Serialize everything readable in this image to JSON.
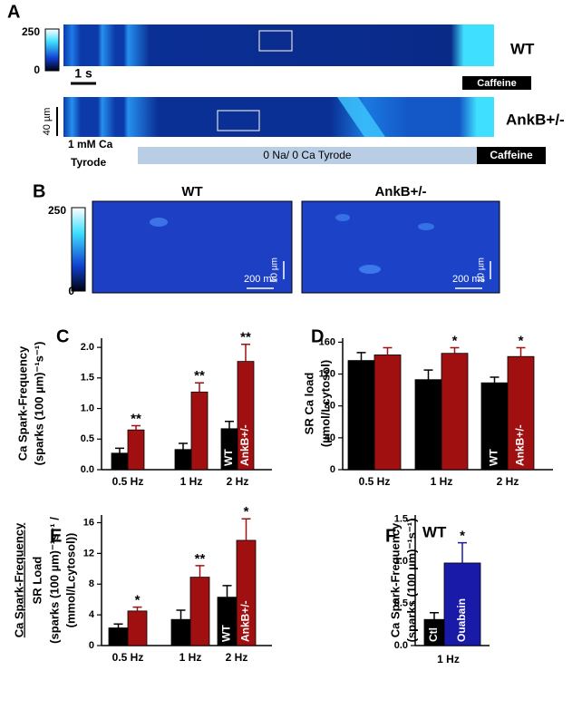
{
  "panel_a": {
    "label": "A",
    "colorbar_max": "250",
    "colorbar_min": "0",
    "wt_label": "WT",
    "time_scale": "1 s",
    "caffeine_1": "Caffeine",
    "ankb_label": "AnkB+/-",
    "space_scale": "40 µm",
    "tyrode_1": "1 mM Ca",
    "tyrode_2": "Tyrode",
    "solution": "0 Na/ 0 Ca Tyrode",
    "caffeine_2": "Caffeine"
  },
  "panel_b": {
    "label": "B",
    "colorbar_max": "250",
    "colorbar_min": "0",
    "wt_title": "WT",
    "ankb_title": "AnkB+/-",
    "space_scale_wt": "10 µm",
    "time_scale_wt": "200 ms",
    "space_scale_ankb": "10 µm",
    "time_scale_ankb": "200 ms"
  },
  "chart_data": [
    {
      "type": "bar",
      "panel_label": "C",
      "ylabel": [
        "Ca Spark-Frequency",
        "(sparks (100 µm)⁻¹s⁻¹)"
      ],
      "categories": [
        "0.5 Hz",
        "1 Hz",
        "2 Hz"
      ],
      "series": [
        {
          "name": "WT",
          "color": "#000000",
          "values": [
            0.27,
            0.33,
            0.67
          ],
          "errors": [
            0.08,
            0.1,
            0.12
          ],
          "annotations": [
            null,
            null,
            null
          ]
        },
        {
          "name": "AnkB+/-",
          "color": "#a01010",
          "values": [
            0.65,
            1.27,
            1.77
          ],
          "errors": [
            0.07,
            0.15,
            0.28
          ],
          "annotations": [
            "**",
            "**",
            "**"
          ]
        }
      ],
      "ylim": [
        0,
        2.15
      ],
      "yticks": [
        {
          "value": 0,
          "label": "0.0"
        },
        0.5,
        {
          "value": 1,
          "label": "1.0"
        },
        1.5,
        {
          "value": 2,
          "label": "2.0"
        }
      ]
    },
    {
      "type": "bar",
      "panel_label": "D",
      "ylabel": [
        "SR Ca load",
        "(µmol/Lcytosol)"
      ],
      "categories": [
        "0.5 Hz",
        "1 Hz",
        "2 Hz"
      ],
      "series": [
        {
          "name": "WT",
          "color": "#000000",
          "values": [
            137,
            113,
            109
          ],
          "errors": [
            10,
            12,
            7
          ],
          "annotations": [
            null,
            null,
            null
          ]
        },
        {
          "name": "AnkB+/-",
          "color": "#a01010",
          "values": [
            144,
            146,
            142
          ],
          "errors": [
            9,
            7,
            11
          ],
          "annotations": [
            null,
            "*",
            "*"
          ]
        }
      ],
      "ylim": [
        0,
        165
      ],
      "yticks": [
        0,
        40,
        80,
        120,
        160
      ]
    },
    {
      "type": "bar",
      "panel_label": "E",
      "ylabel": [
        "Ca Spark-Frequency",
        "SR Load",
        "(sparks (100 µm)⁻¹s⁻¹ /",
        "(mmol/Lcytosol))"
      ],
      "categories": [
        "0.5 Hz",
        "1 Hz",
        "2 Hz"
      ],
      "series": [
        {
          "name": "WT",
          "color": "#000000",
          "values": [
            2.3,
            3.4,
            6.3
          ],
          "errors": [
            0.5,
            1.2,
            1.5
          ],
          "annotations": [
            null,
            null,
            null
          ]
        },
        {
          "name": "AnkB+/-",
          "color": "#a01010",
          "values": [
            4.5,
            8.9,
            13.7
          ],
          "errors": [
            0.5,
            1.5,
            2.8
          ],
          "annotations": [
            "*",
            "**",
            "*"
          ]
        }
      ],
      "ylim": [
        0,
        17
      ],
      "yticks": [
        0,
        4,
        8,
        12,
        16
      ]
    },
    {
      "type": "bar",
      "panel_label": "F",
      "title": "WT",
      "ylabel": [
        "Ca Spark-Frequency",
        "(sparks (100 µm)⁻¹s⁻¹)"
      ],
      "xlabel": "1 Hz",
      "categories": [
        "Ctl",
        "Ouabain"
      ],
      "colors": [
        "#000000",
        "#1a1aa8"
      ],
      "values": [
        0.31,
        0.98
      ],
      "errors": [
        0.08,
        0.24
      ],
      "annotations": [
        null,
        "*"
      ],
      "ylim": [
        0,
        1.55
      ],
      "yticks": [
        {
          "value": 0,
          "label": "0.0"
        },
        0.5,
        {
          "value": 1,
          "label": "1.0"
        },
        1.5
      ]
    }
  ]
}
